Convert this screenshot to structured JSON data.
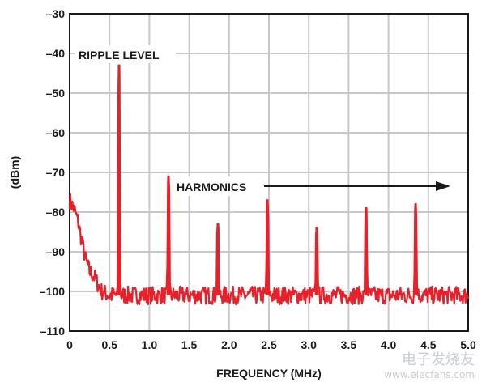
{
  "chart_data": {
    "type": "line",
    "xlabel": "FREQUENCY (MHz)",
    "ylabel": "(dBm)",
    "xlim": [
      0,
      5.0
    ],
    "ylim": [
      -110,
      -30
    ],
    "xticks": [
      "0",
      "0.5",
      "1.0",
      "1.5",
      "2.0",
      "2.5",
      "3.0",
      "3.5",
      "4.0",
      "4.5",
      "5.0"
    ],
    "yticks": [
      "-30",
      "-40",
      "-50",
      "-60",
      "-70",
      "-80",
      "-90",
      "-100",
      "-110"
    ],
    "grid": true,
    "line_color": "#e8202a",
    "noise_floor_dbm": -101,
    "rolloff": {
      "x": [
        0,
        0.05,
        0.1,
        0.15,
        0.2,
        0.25,
        0.3,
        0.35,
        0.4,
        0.5
      ],
      "y": [
        -77,
        -79,
        -82,
        -87,
        -92,
        -95,
        -96,
        -98,
        -100,
        -101
      ]
    },
    "peaks": {
      "x": [
        0.62,
        1.24,
        1.86,
        2.48,
        3.1,
        3.72,
        4.34
      ],
      "y": [
        -43,
        -71,
        -83,
        -77,
        -84,
        -79,
        -78
      ]
    },
    "annotations": [
      {
        "text": "RIPPLE LEVEL"
      },
      {
        "text": "HARMONICS"
      }
    ]
  },
  "watermark": {
    "cn": "电子发烧友",
    "url": "www.elecfans.com"
  }
}
